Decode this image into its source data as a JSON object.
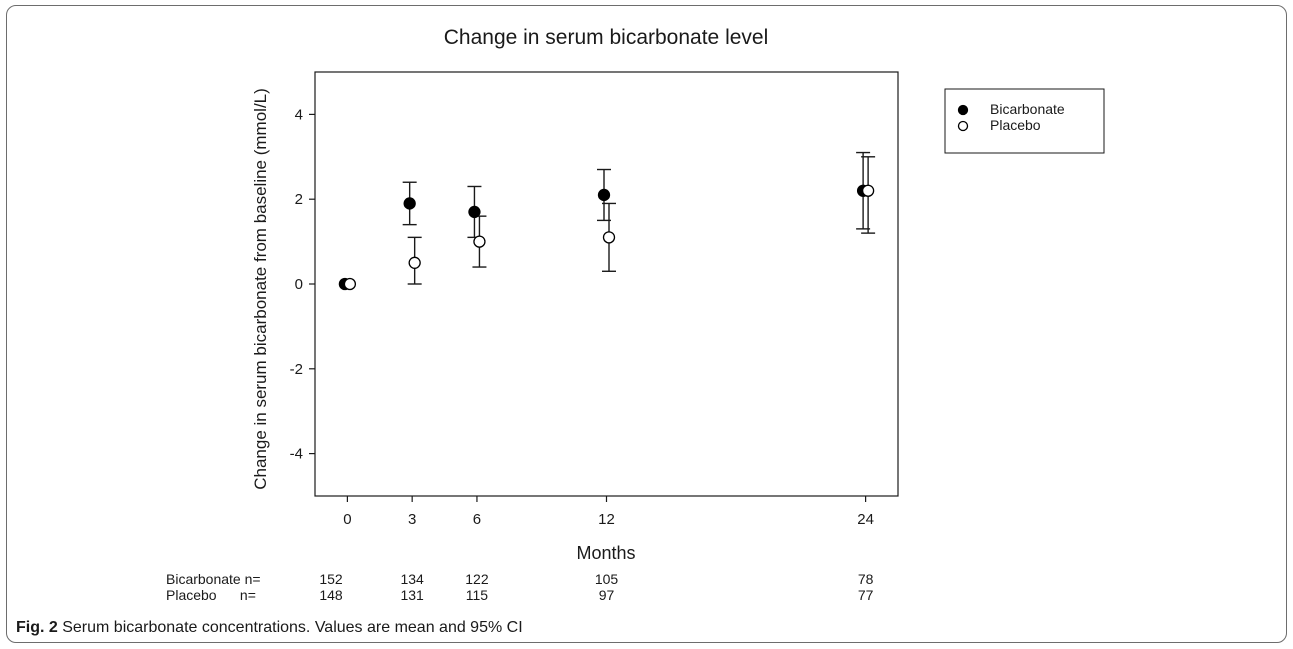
{
  "chart_data": {
    "type": "scatter",
    "title": "Change in serum bicarbonate level",
    "xlabel": "Months",
    "ylabel": "Change in serum bicarbonate from baseline (mmol/L)",
    "x_ticks": [
      0,
      3,
      6,
      12,
      24
    ],
    "y_ticks": [
      4,
      2,
      0,
      -2,
      -4
    ],
    "xlim": [
      -1.5,
      25.5
    ],
    "ylim": [
      -5,
      5
    ],
    "grid": false,
    "legend_position": "top-right",
    "series": [
      {
        "name": "Bicarbonate",
        "marker": "filled-circle",
        "color": "#000000",
        "points": [
          {
            "x": 0,
            "y": 0,
            "lo": null,
            "hi": null
          },
          {
            "x": 3,
            "y": 1.9,
            "lo": 1.4,
            "hi": 2.4
          },
          {
            "x": 6,
            "y": 1.7,
            "lo": 1.1,
            "hi": 2.3
          },
          {
            "x": 12,
            "y": 2.1,
            "lo": 1.5,
            "hi": 2.7
          },
          {
            "x": 24,
            "y": 2.2,
            "lo": 1.3,
            "hi": 3.1
          }
        ]
      },
      {
        "name": "Placebo",
        "marker": "open-circle",
        "color": "#000000",
        "points": [
          {
            "x": 0,
            "y": 0,
            "lo": null,
            "hi": null
          },
          {
            "x": 3,
            "y": 0.5,
            "lo": 0.0,
            "hi": 1.1
          },
          {
            "x": 6,
            "y": 1.0,
            "lo": 0.4,
            "hi": 1.6
          },
          {
            "x": 12,
            "y": 1.1,
            "lo": 0.3,
            "hi": 1.9
          },
          {
            "x": 24,
            "y": 2.2,
            "lo": 1.2,
            "hi": 3.0
          }
        ]
      }
    ],
    "n_table": {
      "rows": [
        {
          "label": "Bicarbonate n=",
          "values": [
            "152",
            "134",
            "122",
            "105",
            "78"
          ]
        },
        {
          "label": "Placebo      n=",
          "values": [
            "148",
            "131",
            "115",
            "97",
            "77"
          ]
        }
      ]
    }
  },
  "caption": {
    "label": "Fig. 2",
    "text": "Serum bicarbonate concentrations. Values are mean and 95% CI"
  }
}
